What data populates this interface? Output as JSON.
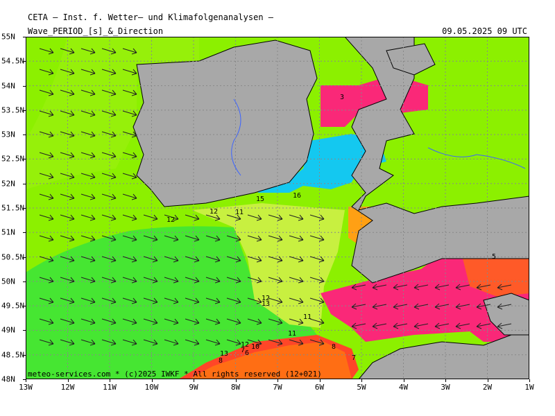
{
  "header": {
    "source": "CETA — Inst. f. Wetter— und Klimafolgenanalysen —",
    "parameter": "Wave_PERIOD_[s]_&_Direction",
    "valid_time": "09.05.2025 09 UTC"
  },
  "footer": {
    "copyright": "meteo-services.com * (c)2025 IWKF * All rights reserved (12+021)"
  },
  "axes": {
    "x_labels": [
      "13W",
      "12W",
      "11W",
      "10W",
      "9W",
      "8W",
      "7W",
      "6W",
      "5W",
      "4W",
      "3W",
      "2W",
      "1W"
    ],
    "y_labels": [
      "55N",
      "54.5N",
      "54N",
      "53.5N",
      "53N",
      "52.5N",
      "52N",
      "51.5N",
      "51N",
      "50.5N",
      "50N",
      "49.5N",
      "49N",
      "48.5N",
      "48N"
    ]
  },
  "period_labels": [
    "3",
    "16",
    "15",
    "12",
    "11",
    "12",
    "12",
    "13",
    "11",
    "11",
    "12",
    "13",
    "10",
    "7",
    "6",
    "8",
    "8",
    "7",
    "5"
  ],
  "colors": {
    "land": "#a8a8a8",
    "sea_long_period": "#8cf000",
    "sea_mid_period": "#46e632",
    "sea_short_period": "#fa2878",
    "sea_orange": "#ff6e14",
    "sea_yellow": "#c8f040",
    "sea_cyan": "#14c8f0",
    "border": "#000000",
    "river": "#3c64ff",
    "grid": "#888888"
  }
}
